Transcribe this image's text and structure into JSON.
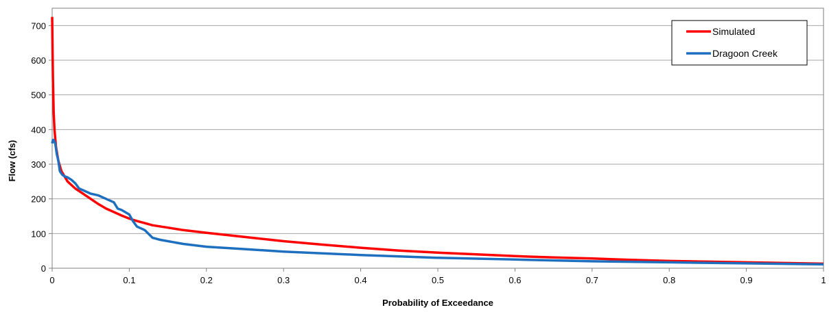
{
  "chart_data": {
    "type": "line",
    "title": "",
    "xlabel": "Probability of Exceedance",
    "ylabel": "Flow (cfs)",
    "xlim": [
      0,
      1
    ],
    "ylim": [
      0,
      700
    ],
    "x_ticks": [
      0,
      0.1,
      0.2,
      0.3,
      0.4,
      0.5,
      0.6,
      0.7,
      0.8,
      0.9,
      1
    ],
    "x_tick_labels": [
      "0",
      "0.1",
      "0.2",
      "0.3",
      "0.4",
      "0.5",
      "0.6",
      "0.7",
      "0.8",
      "0.9",
      "1"
    ],
    "y_ticks": [
      0,
      100,
      200,
      300,
      400,
      500,
      600,
      700
    ],
    "y_tick_labels": [
      "0",
      "100",
      "200",
      "300",
      "400",
      "500",
      "600",
      "700"
    ],
    "grid": "horizontal",
    "legend_position": "top-right",
    "series": [
      {
        "name": "Simulated",
        "color": "#ff0000",
        "x": [
          0,
          0.001,
          0.002,
          0.003,
          0.005,
          0.008,
          0.012,
          0.02,
          0.03,
          0.04,
          0.05,
          0.06,
          0.07,
          0.08,
          0.09,
          0.1,
          0.11,
          0.12,
          0.13,
          0.15,
          0.17,
          0.2,
          0.25,
          0.3,
          0.35,
          0.4,
          0.45,
          0.5,
          0.55,
          0.6,
          0.65,
          0.7,
          0.75,
          0.8,
          0.85,
          0.9,
          0.95,
          1.0
        ],
        "values": [
          725,
          550,
          450,
          400,
          350,
          310,
          280,
          250,
          230,
          215,
          200,
          185,
          172,
          162,
          152,
          143,
          136,
          130,
          124,
          117,
          110,
          102,
          90,
          78,
          68,
          59,
          51,
          45,
          40,
          35,
          31,
          28,
          24,
          21,
          19,
          17,
          15,
          13
        ]
      },
      {
        "name": "Dragoon Creek",
        "color": "#1f6fbf",
        "x": [
          0,
          0.001,
          0.002,
          0.004,
          0.006,
          0.008,
          0.01,
          0.013,
          0.016,
          0.02,
          0.025,
          0.03,
          0.035,
          0.04,
          0.05,
          0.06,
          0.07,
          0.08,
          0.085,
          0.09,
          0.1,
          0.105,
          0.11,
          0.115,
          0.12,
          0.13,
          0.14,
          0.15,
          0.17,
          0.2,
          0.25,
          0.3,
          0.35,
          0.4,
          0.45,
          0.5,
          0.6,
          0.7,
          0.8,
          0.9,
          1.0
        ],
        "values": [
          360,
          370,
          370,
          360,
          330,
          310,
          280,
          270,
          265,
          262,
          255,
          245,
          230,
          225,
          215,
          210,
          200,
          190,
          172,
          168,
          155,
          135,
          120,
          115,
          110,
          88,
          82,
          78,
          70,
          62,
          55,
          48,
          43,
          38,
          34,
          30,
          25,
          20,
          17,
          14,
          11
        ]
      }
    ]
  }
}
